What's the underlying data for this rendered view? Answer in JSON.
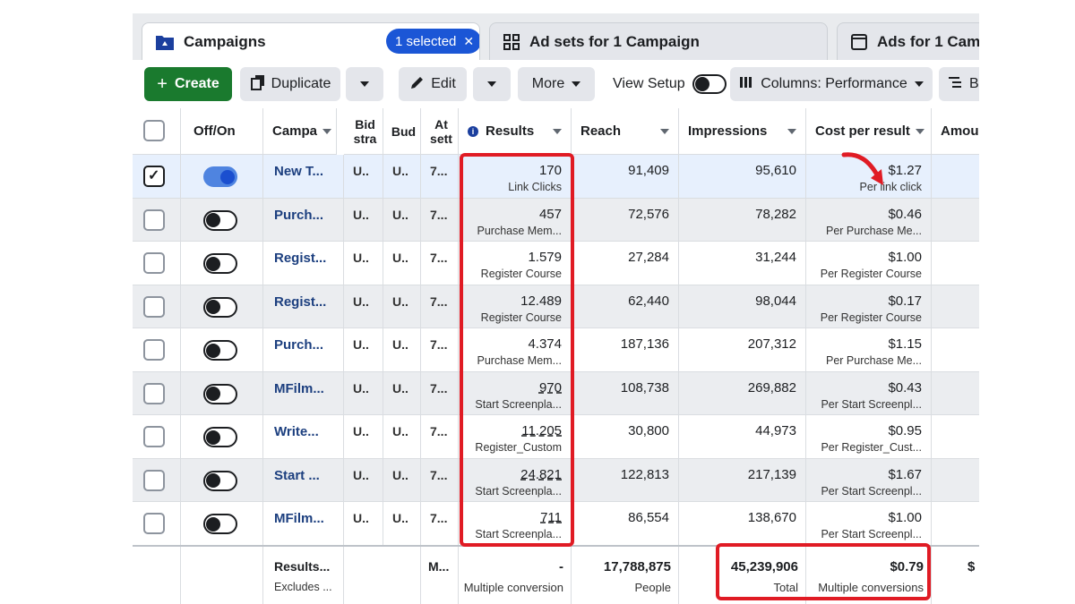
{
  "tabs": {
    "campaigns": "Campaigns",
    "selected": "1 selected",
    "adsets": "Ad sets for 1 Campaign",
    "ads": "Ads for 1 Camp"
  },
  "toolbar": {
    "create": "Create",
    "duplicate": "Duplicate",
    "edit": "Edit",
    "more": "More",
    "view_setup": "View Setup",
    "columns": "Columns: Performance",
    "breakdown": "B"
  },
  "headers": {
    "offon": "Off/On",
    "campaign": "Campa",
    "bid": "Bid stra",
    "budget": "Bud",
    "attribution": "At sett",
    "results": "Results",
    "reach": "Reach",
    "impressions": "Impressions",
    "cpr": "Cost per result",
    "amount": "Amour"
  },
  "rows": [
    {
      "name": "New T...",
      "bid": "U..",
      "budget": "U..",
      "attr": "7...",
      "results": "170",
      "results_type": "Link Clicks",
      "reach": "91,409",
      "impressions": "95,610",
      "cpr": "$1.27",
      "cpr_type": "Per link click"
    },
    {
      "name": "Purch...",
      "bid": "U..",
      "budget": "U..",
      "attr": "7...",
      "results": "457",
      "results_type": "Purchase Mem...",
      "reach": "72,576",
      "impressions": "78,282",
      "cpr": "$0.46",
      "cpr_type": "Per Purchase Me..."
    },
    {
      "name": "Regist...",
      "bid": "U..",
      "budget": "U..",
      "attr": "7...",
      "results": "1.579",
      "results_type": "Register Course",
      "reach": "27,284",
      "impressions": "31,244",
      "cpr": "$1.00",
      "cpr_type": "Per Register Course"
    },
    {
      "name": "Regist...",
      "bid": "U..",
      "budget": "U..",
      "attr": "7...",
      "results": "12.489",
      "results_type": "Register Course",
      "reach": "62,440",
      "impressions": "98,044",
      "cpr": "$0.17",
      "cpr_type": "Per Register Course"
    },
    {
      "name": "Purch...",
      "bid": "U..",
      "budget": "U..",
      "attr": "7...",
      "results": "4.374",
      "results_type": "Purchase Mem...",
      "reach": "187,136",
      "impressions": "207,312",
      "cpr": "$1.15",
      "cpr_type": "Per Purchase Me..."
    },
    {
      "name": "MFilm...",
      "bid": "U..",
      "budget": "U..",
      "attr": "7...",
      "results": "970",
      "results_type": "Start Screenpla...",
      "reach": "108,738",
      "impressions": "269,882",
      "cpr": "$0.43",
      "cpr_type": "Per Start Screenpl..."
    },
    {
      "name": "Write...",
      "bid": "U..",
      "budget": "U..",
      "attr": "7...",
      "results": "11.205",
      "results_type": "Register_Custom",
      "reach": "30,800",
      "impressions": "44,973",
      "cpr": "$0.95",
      "cpr_type": "Per Register_Cust..."
    },
    {
      "name": "Start ...",
      "bid": "U..",
      "budget": "U..",
      "attr": "7...",
      "results": "24.821",
      "results_type": "Start Screenpla...",
      "reach": "122,813",
      "impressions": "217,139",
      "cpr": "$1.67",
      "cpr_type": "Per Start Screenpl..."
    },
    {
      "name": "MFilm...",
      "bid": "U..",
      "budget": "U..",
      "attr": "7...",
      "results": "711",
      "results_type": "Start Screenpla...",
      "reach": "86,554",
      "impressions": "138,670",
      "cpr": "$1.00",
      "cpr_type": "Per Start Screenpl..."
    }
  ],
  "footer": {
    "name": "Results...",
    "name_sub": "Excludes ...",
    "attr": "M...",
    "results": "-",
    "results_sub": "Multiple conversion",
    "reach": "17,788,875",
    "reach_sub": "People",
    "impressions": "45,239,906",
    "impressions_sub": "Total",
    "cpr": "$0.79",
    "cpr_sub": "Multiple conversions",
    "amount": "$"
  },
  "colors": {
    "accent": "#1b56d6",
    "create_green": "#1a7a2e",
    "annotation_red": "#e01b24"
  }
}
